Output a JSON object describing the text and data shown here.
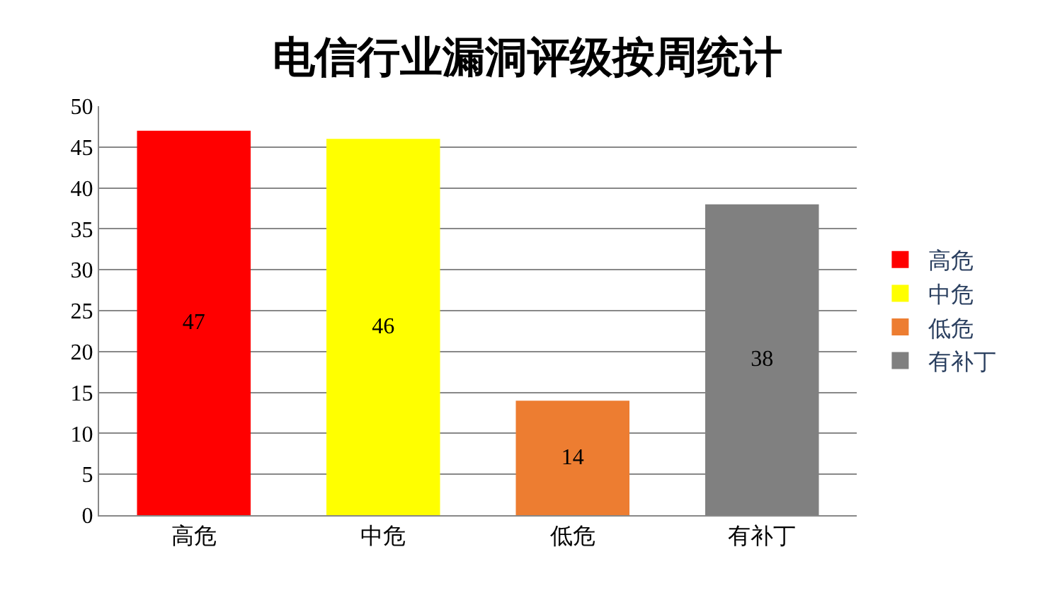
{
  "chart_data": {
    "type": "bar",
    "title": "电信行业漏洞评级按周统计",
    "categories": [
      "高危",
      "中危",
      "低危",
      "有补丁"
    ],
    "series": [
      {
        "name": "高危",
        "color": "#ff0000",
        "values": [
          47,
          null,
          null,
          null
        ]
      },
      {
        "name": "中危",
        "color": "#ffff00",
        "values": [
          null,
          46,
          null,
          null
        ]
      },
      {
        "name": "低危",
        "color": "#ed7d31",
        "values": [
          null,
          null,
          14,
          null
        ]
      },
      {
        "name": "有补丁",
        "color": "#808080",
        "values": [
          null,
          null,
          null,
          38
        ]
      }
    ],
    "ylim": [
      0,
      50
    ],
    "yticks": [
      0,
      5,
      10,
      15,
      20,
      25,
      30,
      35,
      40,
      45,
      50
    ],
    "grid": "y",
    "legend": "right",
    "data_labels": true
  }
}
